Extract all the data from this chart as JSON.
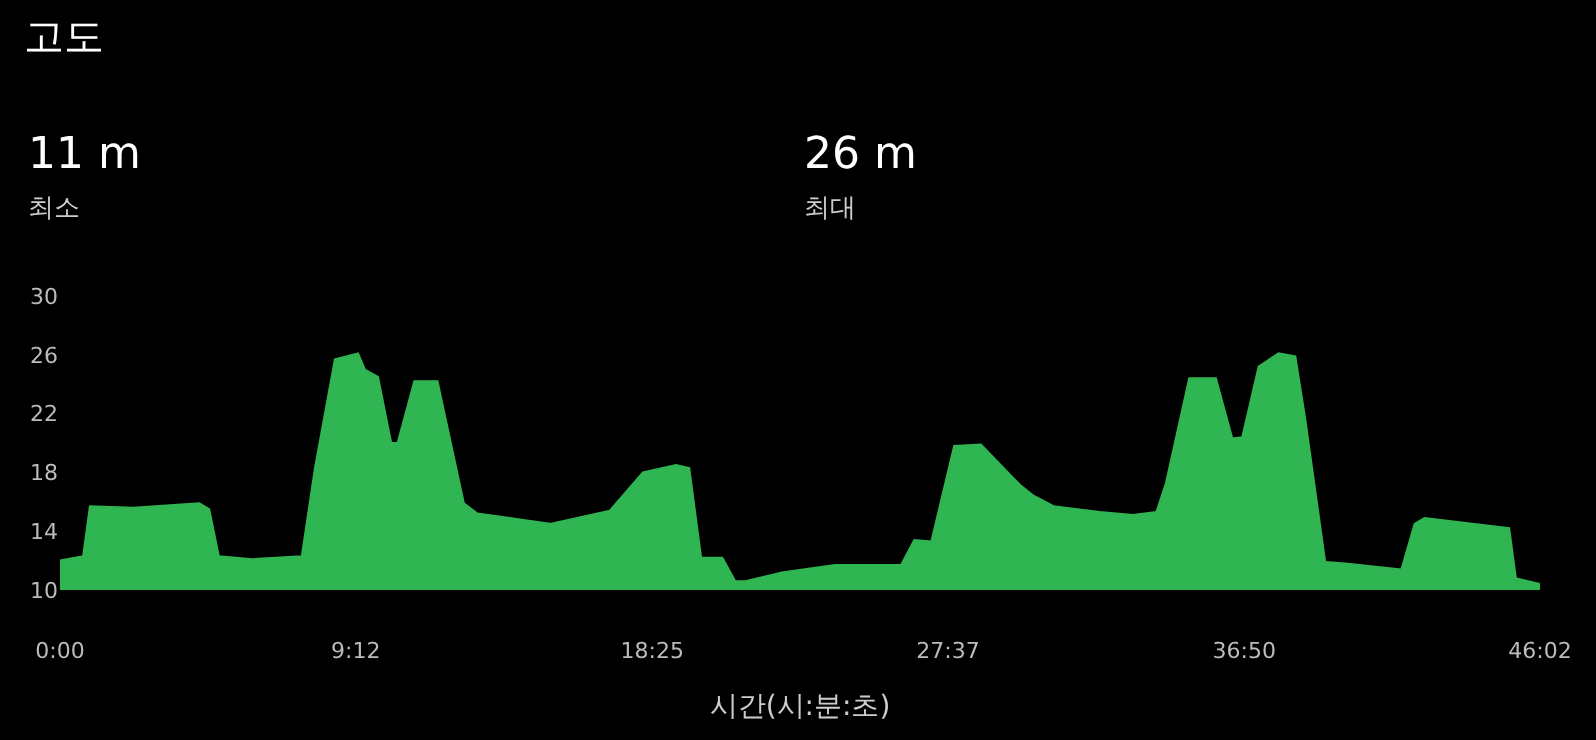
{
  "chart_data": {
    "type": "area",
    "title": "고도",
    "xlabel": "시간(시:분:초)",
    "annotations": [
      "11 m",
      "최소",
      "26 m",
      "최대"
    ],
    "x": [
      0,
      0.72,
      0.93,
      2.27,
      4.33,
      4.64,
      4.94,
      5.98,
      7.52,
      7.93,
      8.55,
      9.27,
      9.48,
      9.89,
      10.3,
      10.5,
      11.02,
      11.74,
      12.56,
      12.98,
      14.63,
      15.24,
      17.1,
      18.13,
      19.16,
      19.57,
      19.94,
      20.6,
      21.0,
      21.32,
      22.45,
      24.1,
      26.16,
      26.57,
      27.1,
      27.81,
      28.64,
      29.88,
      30.29,
      30.9,
      32.34,
      33.37,
      34.1,
      34.4,
      35.12,
      35.95,
      36.46,
      36.77,
      37.28,
      37.9,
      38.42,
      38.73,
      39.35,
      39.97,
      41.72,
      42.13,
      42.44,
      44.7,
      45.07,
      45.28,
      46.03
    ],
    "series": [
      {
        "color": "#2fb552",
        "values": [
          12.0,
          12.3,
          15.7,
          15.6,
          15.9,
          15.5,
          12.3,
          12.1,
          12.3,
          18.3,
          25.7,
          26.1,
          25.0,
          24.5,
          20.0,
          20.0,
          24.2,
          24.2,
          15.9,
          15.2,
          14.7,
          14.5,
          15.4,
          18.0,
          18.5,
          18.3,
          12.2,
          12.2,
          10.6,
          10.6,
          11.2,
          11.7,
          11.7,
          13.4,
          13.3,
          19.8,
          19.9,
          17.1,
          16.4,
          15.7,
          15.3,
          15.1,
          15.3,
          17.3,
          24.4,
          24.4,
          20.3,
          20.4,
          25.2,
          26.1,
          25.9,
          21.6,
          11.9,
          11.8,
          11.4,
          14.5,
          14.9,
          14.3,
          14.2,
          10.8,
          10.4
        ]
      }
    ],
    "xlim": [
      0,
      46.03
    ],
    "xticks": [
      {
        "value": 0,
        "label": "0:00"
      },
      {
        "value": 9.2,
        "label": "9:12"
      },
      {
        "value": 18.42,
        "label": "18:25"
      },
      {
        "value": 27.62,
        "label": "27:37"
      },
      {
        "value": 36.83,
        "label": "36:50"
      },
      {
        "value": 46.03,
        "label": "46:02"
      }
    ],
    "ylim": [
      10,
      30
    ],
    "yticks": [
      10,
      14,
      18,
      22,
      26,
      30
    ]
  }
}
